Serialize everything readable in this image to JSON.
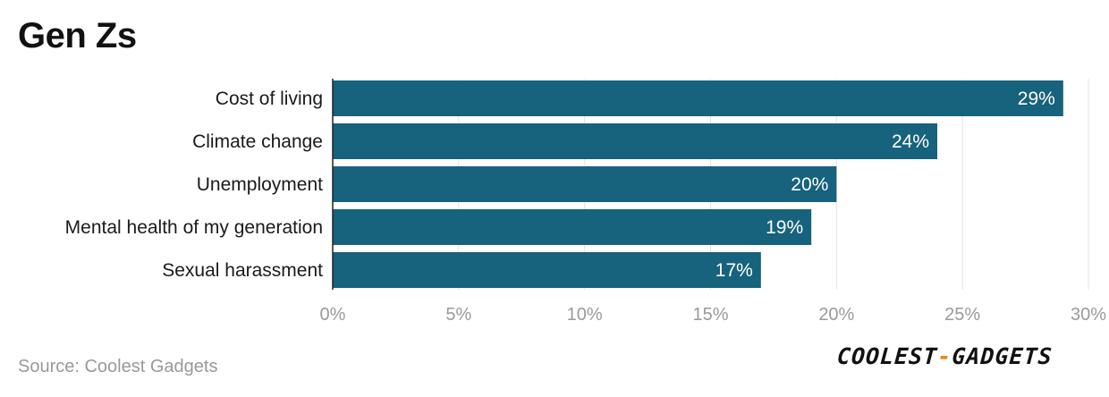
{
  "chart_data": {
    "type": "bar",
    "orientation": "horizontal",
    "title": "Gen Zs",
    "categories": [
      "Cost of living",
      "Climate change",
      "Unemployment",
      "Mental health of my generation",
      "Sexual harassment"
    ],
    "values": [
      29,
      24,
      20,
      19,
      17
    ],
    "value_labels": [
      "29%",
      "24%",
      "20%",
      "19%",
      "17%"
    ],
    "x_ticks": [
      "0%",
      "5%",
      "10%",
      "15%",
      "20%",
      "25%",
      "30%"
    ],
    "xlim": [
      0,
      30
    ],
    "xlabel": "",
    "ylabel": "",
    "grid": "vertical",
    "bar_color": "#17627c"
  },
  "footer": {
    "source": "Source: Coolest Gadgets",
    "logo": {
      "left": "COOLEST",
      "dash": "-",
      "right": "GADGETS",
      "accent_color": "#e8891c"
    }
  }
}
